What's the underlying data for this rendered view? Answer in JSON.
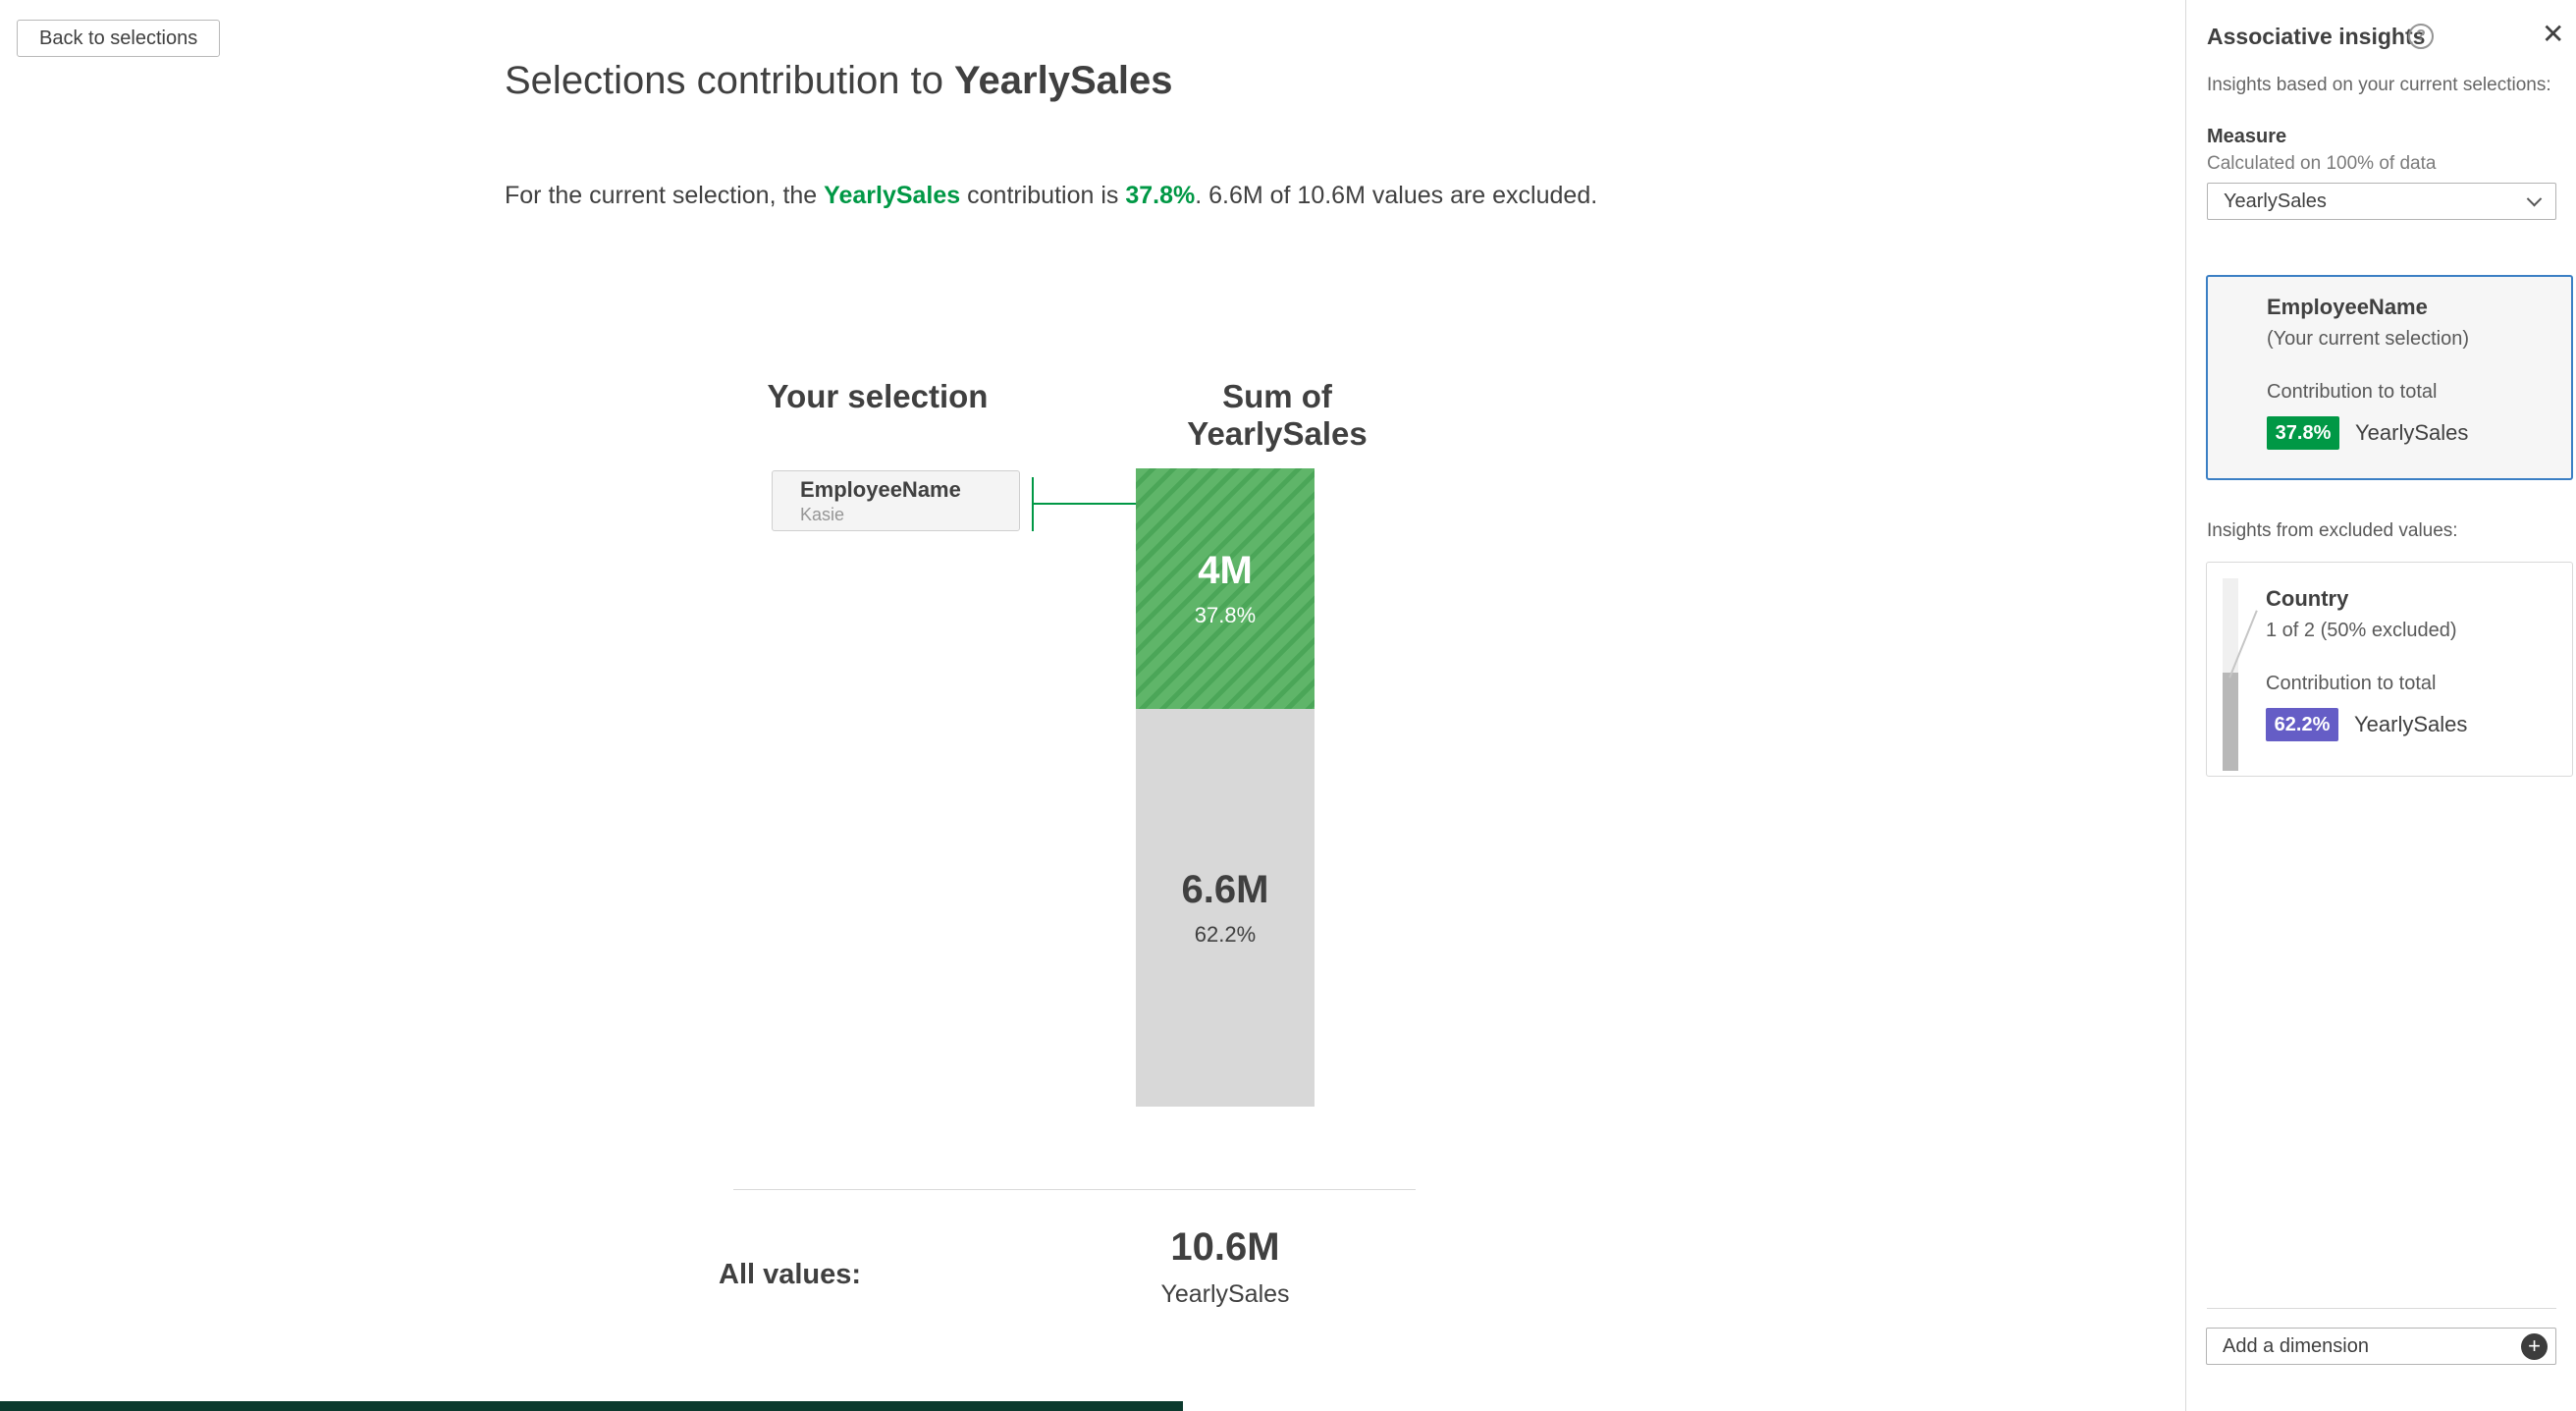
{
  "main": {
    "back_button": "Back to selections",
    "title_prefix": "Selections contribution to ",
    "title_measure": "YearlySales",
    "subtitle": {
      "part1": "For the current selection, the ",
      "measure": "YearlySales",
      "part2": " contribution is ",
      "percent": "37.8%",
      "part3": ". 6.6M of 10.6M values are excluded."
    },
    "columns": {
      "selection_header": "Your selection",
      "sum_header": "Sum of YearlySales"
    },
    "selection_card": {
      "field": "EmployeeName",
      "value": "Kasie"
    },
    "bar": {
      "included_value": "4M",
      "included_percent": "37.8%",
      "excluded_value": "6.6M",
      "excluded_percent": "62.2%"
    },
    "totals": {
      "label": "All values:",
      "value": "10.6M",
      "measure": "YearlySales"
    }
  },
  "sidebar": {
    "title": "Associative insights",
    "subtitle": "Insights based on your current selections:",
    "measure_label": "Measure",
    "measure_note": "Calculated on 100% of data",
    "measure_selected": "YearlySales",
    "current_card": {
      "field": "EmployeeName",
      "note": "(Your current selection)",
      "contribution_label": "Contribution to total",
      "percent": "37.8%",
      "measure": "YearlySales"
    },
    "excluded_label": "Insights from excluded values:",
    "excluded_card": {
      "field": "Country",
      "note": "1 of 2 (50% excluded)",
      "contribution_label": "Contribution to total",
      "percent": "62.2%",
      "measure": "YearlySales"
    },
    "add_dimension_label": "Add a dimension"
  },
  "icons": {
    "help": "?",
    "close": "✕",
    "add": "+"
  },
  "colors": {
    "green": "#009845",
    "purple": "#655dc6",
    "selected_card_border": "#3b7fc4",
    "bar_included_green": "#5fb569",
    "bar_excluded_grey": "#d8d8d8",
    "taskbar_strip": "#0c3a2e"
  }
}
